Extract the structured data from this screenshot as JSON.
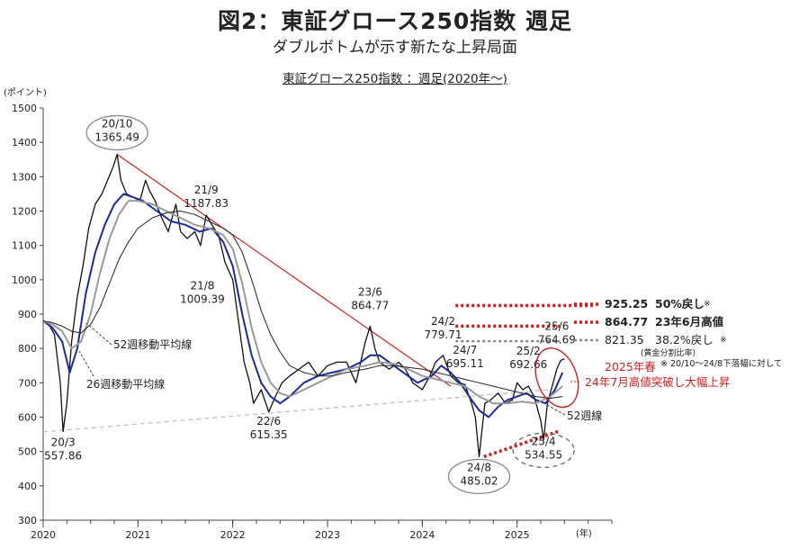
{
  "header": {
    "title": "図2：東証グロース250指数 週足",
    "subtitle": "ダブルボトムが示す新たな上昇局面",
    "chart_caption": "東証グロース250指数 ：週足(2020年～)"
  },
  "chart_data": {
    "type": "line",
    "title": "東証グロース250指数 ：週足(2020年～)",
    "ylabel": "(ポイント)",
    "xlabel": "(年)",
    "ylim": [
      300,
      1500
    ],
    "yticks": [
      "300",
      "400",
      "500",
      "600",
      "700",
      "800",
      "900",
      "1000",
      "1100",
      "1200",
      "1300",
      "1400",
      "1500"
    ],
    "xlim": [
      2020.0,
      2026.0
    ],
    "xticks": [
      {
        "x": 2020,
        "label": "2020"
      },
      {
        "x": 2021,
        "label": "2021"
      },
      {
        "x": 2022,
        "label": "2022"
      },
      {
        "x": 2023,
        "label": "2023"
      },
      {
        "x": 2024,
        "label": "2024"
      },
      {
        "x": 2025,
        "label": "2025"
      }
    ],
    "series": [
      {
        "color": "#111111",
        "x": [
          2020.0,
          2020.06,
          2020.12,
          2020.18,
          2020.21,
          2020.25,
          2020.3,
          2020.36,
          2020.42,
          2020.48,
          2020.55,
          2020.62,
          2020.68,
          2020.74,
          2020.78,
          2020.82,
          2020.88,
          2020.95,
          2021.02,
          2021.08,
          2021.12,
          2021.18,
          2021.25,
          2021.32,
          2021.4,
          2021.45,
          2021.52,
          2021.6,
          2021.66,
          2021.72,
          2021.78,
          2021.85,
          2021.92,
          2022.0,
          2022.06,
          2022.12,
          2022.18,
          2022.22,
          2022.3,
          2022.38,
          2022.45,
          2022.52,
          2022.6,
          2022.7,
          2022.8,
          2022.9,
          2023.0,
          2023.1,
          2023.2,
          2023.3,
          2023.4,
          2023.45,
          2023.5,
          2023.55,
          2023.65,
          2023.75,
          2023.82,
          2023.9,
          2024.0,
          2024.08,
          2024.14,
          2024.22,
          2024.3,
          2024.38,
          2024.45,
          2024.52,
          2024.56,
          2024.6,
          2024.66,
          2024.72,
          2024.8,
          2024.88,
          2024.95,
          2025.0,
          2025.06,
          2025.12,
          2025.18,
          2025.25,
          2025.28,
          2025.32,
          2025.38,
          2025.42,
          2025.46,
          2025.5
        ],
        "values": [
          880,
          870,
          840,
          700,
          558,
          640,
          820,
          950,
          1040,
          1150,
          1220,
          1250,
          1290,
          1330,
          1365,
          1290,
          1250,
          1240,
          1230,
          1290,
          1260,
          1230,
          1180,
          1140,
          1220,
          1140,
          1120,
          1140,
          1100,
          1188,
          1160,
          1130,
          1050,
          1000,
          880,
          760,
          700,
          640,
          680,
          615,
          660,
          700,
          720,
          740,
          760,
          720,
          750,
          760,
          760,
          700,
          820,
          865,
          800,
          760,
          740,
          760,
          740,
          700,
          680,
          720,
          760,
          780,
          720,
          700,
          695,
          640,
          600,
          485,
          640,
          650,
          670,
          640,
          650,
          700,
          680,
          690,
          660,
          590,
          534,
          640,
          700,
          740,
          765,
          770
        ]
      },
      {
        "color": "#1c2b9a",
        "x": [
          2020.0,
          2020.1,
          2020.2,
          2020.28,
          2020.36,
          2020.45,
          2020.55,
          2020.65,
          2020.75,
          2020.85,
          2020.95,
          2021.05,
          2021.2,
          2021.35,
          2021.5,
          2021.65,
          2021.78,
          2021.9,
          2022.0,
          2022.1,
          2022.2,
          2022.3,
          2022.4,
          2022.5,
          2022.6,
          2022.75,
          2022.9,
          2023.05,
          2023.2,
          2023.35,
          2023.45,
          2023.55,
          2023.65,
          2023.8,
          2023.95,
          2024.1,
          2024.2,
          2024.3,
          2024.4,
          2024.52,
          2024.6,
          2024.7,
          2024.8,
          2024.9,
          2025.0,
          2025.1,
          2025.2,
          2025.3,
          2025.4,
          2025.48
        ],
        "values": [
          880,
          860,
          820,
          730,
          800,
          960,
          1080,
          1160,
          1220,
          1250,
          1240,
          1230,
          1200,
          1170,
          1160,
          1140,
          1150,
          1110,
          1040,
          900,
          780,
          700,
          660,
          640,
          660,
          700,
          720,
          730,
          740,
          760,
          780,
          780,
          760,
          730,
          700,
          720,
          750,
          730,
          700,
          650,
          620,
          600,
          630,
          650,
          660,
          670,
          650,
          640,
          680,
          730
        ]
      },
      {
        "color": "#9a9a9a",
        "x": [
          2020.0,
          2020.1,
          2020.2,
          2020.3,
          2020.4,
          2020.5,
          2020.6,
          2020.7,
          2020.8,
          2020.9,
          2021.0,
          2021.15,
          2021.3,
          2021.45,
          2021.6,
          2021.75,
          2021.9,
          2022.0,
          2022.1,
          2022.2,
          2022.3,
          2022.4,
          2022.5,
          2022.6,
          2022.75,
          2022.9,
          2023.05,
          2023.2,
          2023.4,
          2023.55,
          2023.7,
          2023.85,
          2024.0,
          2024.15,
          2024.3,
          2024.45,
          2024.6,
          2024.75,
          2024.9,
          2025.05,
          2025.2,
          2025.35,
          2025.48
        ],
        "values": [
          880,
          870,
          850,
          800,
          820,
          900,
          1020,
          1120,
          1190,
          1230,
          1230,
          1220,
          1200,
          1180,
          1160,
          1150,
          1130,
          1090,
          990,
          860,
          760,
          700,
          670,
          660,
          680,
          700,
          720,
          740,
          750,
          760,
          755,
          740,
          720,
          710,
          700,
          690,
          660,
          640,
          640,
          645,
          640,
          660,
          690
        ]
      },
      {
        "color": "#222222",
        "x": [
          2020.0,
          2020.1,
          2020.2,
          2020.3,
          2020.4,
          2020.5,
          2020.6,
          2020.7,
          2020.8,
          2020.9,
          2021.0,
          2021.15,
          2021.3,
          2021.45,
          2021.6,
          2021.75,
          2021.9,
          2022.0,
          2022.1,
          2022.2,
          2022.3,
          2022.4,
          2022.5,
          2022.6,
          2022.75,
          2022.9,
          2023.05,
          2023.2,
          2023.4,
          2023.55,
          2023.7,
          2023.85,
          2024.0,
          2024.15,
          2024.3,
          2024.45,
          2024.6,
          2024.75,
          2024.9,
          2025.05,
          2025.2,
          2025.35,
          2025.48
        ],
        "values": [
          880,
          875,
          865,
          850,
          845,
          870,
          920,
          990,
          1060,
          1110,
          1150,
          1180,
          1195,
          1200,
          1190,
          1170,
          1150,
          1130,
          1080,
          1000,
          910,
          840,
          790,
          750,
          730,
          720,
          720,
          730,
          740,
          750,
          750,
          745,
          740,
          730,
          720,
          710,
          700,
          690,
          680,
          670,
          660,
          655,
          660
        ]
      }
    ],
    "lines": [
      {
        "type": "trendline",
        "color": "#cc2222",
        "style": "solid",
        "x": [
          2020.78,
          2024.3
        ],
        "y": [
          1365,
          690
        ]
      },
      {
        "type": "support",
        "color": "#bbbbbb",
        "style": "dashed",
        "x": [
          2020.0,
          2025.35
        ],
        "y": [
          557,
          680
        ]
      },
      {
        "type": "level-50",
        "color": "#cc1f1f",
        "style": "dotted",
        "x": [
          2024.35,
          2025.8
        ],
        "y": [
          925,
          925
        ]
      },
      {
        "type": "level-jun23",
        "color": "#cc1f1f",
        "style": "dotted",
        "x": [
          2024.35,
          2025.45
        ],
        "y": [
          865,
          865
        ]
      },
      {
        "type": "level-382",
        "color": "#888888",
        "style": "dotted",
        "x": [
          2024.35,
          2025.45
        ],
        "y": [
          821,
          821
        ]
      },
      {
        "type": "bottoms",
        "color": "#cc1f1f",
        "style": "dotted",
        "x": [
          2024.65,
          2025.45
        ],
        "y": [
          485,
          560
        ]
      }
    ],
    "annotations": [
      {
        "id": "peak-2010",
        "lines": [
          "20/10",
          "1365.49"
        ],
        "x": 2020.78,
        "y": 1365,
        "circled": true
      },
      {
        "id": "high-219",
        "lines": [
          "21/9",
          "1187.83"
        ],
        "x": 2021.72,
        "y": 1188
      },
      {
        "id": "low-218",
        "lines": [
          "21/8",
          "1009.39"
        ],
        "x": 2021.68,
        "y": 1009
      },
      {
        "id": "low-203",
        "lines": [
          "20/3",
          "557.86"
        ],
        "x": 2020.21,
        "y": 558
      },
      {
        "id": "low-226",
        "lines": [
          "22/6",
          "615.35"
        ],
        "x": 2022.38,
        "y": 615
      },
      {
        "id": "high-236",
        "lines": [
          "23/6",
          "864.77"
        ],
        "x": 2023.45,
        "y": 865
      },
      {
        "id": "high-242",
        "lines": [
          "24/2",
          "779.71"
        ],
        "x": 2024.22,
        "y": 780
      },
      {
        "id": "high-247",
        "lines": [
          "24/7",
          "695.11"
        ],
        "x": 2024.45,
        "y": 695
      },
      {
        "id": "high-252",
        "lines": [
          "25/2",
          "692.66"
        ],
        "x": 2025.12,
        "y": 693
      },
      {
        "id": "last-256",
        "lines": [
          "25/6",
          "764.69"
        ],
        "x": 2025.42,
        "y": 765
      },
      {
        "id": "low-248",
        "lines": [
          "24/8",
          "485.02"
        ],
        "x": 2024.6,
        "y": 485,
        "circled": true
      },
      {
        "id": "low-254",
        "lines": [
          "25/4",
          "534.55"
        ],
        "x": 2025.28,
        "y": 535,
        "circled": true
      }
    ],
    "ma_labels": {
      "ma52_upper": "52週移動平均線",
      "ma26": "26週移動平均線",
      "ma52_right": "52週線"
    },
    "legend_levels": [
      {
        "value": "925.25",
        "label": "50%戻し",
        "note": "※",
        "color": "#cc1f1f",
        "bold": true
      },
      {
        "value": "864.77",
        "label": "23年6月高値",
        "note": "",
        "color": "#cc1f1f",
        "bold": true
      },
      {
        "value": "821.35",
        "label": "38.2%戻し",
        "note": "※",
        "color": "#888888",
        "bold": false
      }
    ],
    "footnote_1": "(黄金分割比率)",
    "footnote_2": "※ 20/10～24/8下落幅に対して",
    "callout_1": "2025年春",
    "callout_2": "24年7月高値突破し大幅上昇",
    "accent_color": "#cc1f1f"
  }
}
